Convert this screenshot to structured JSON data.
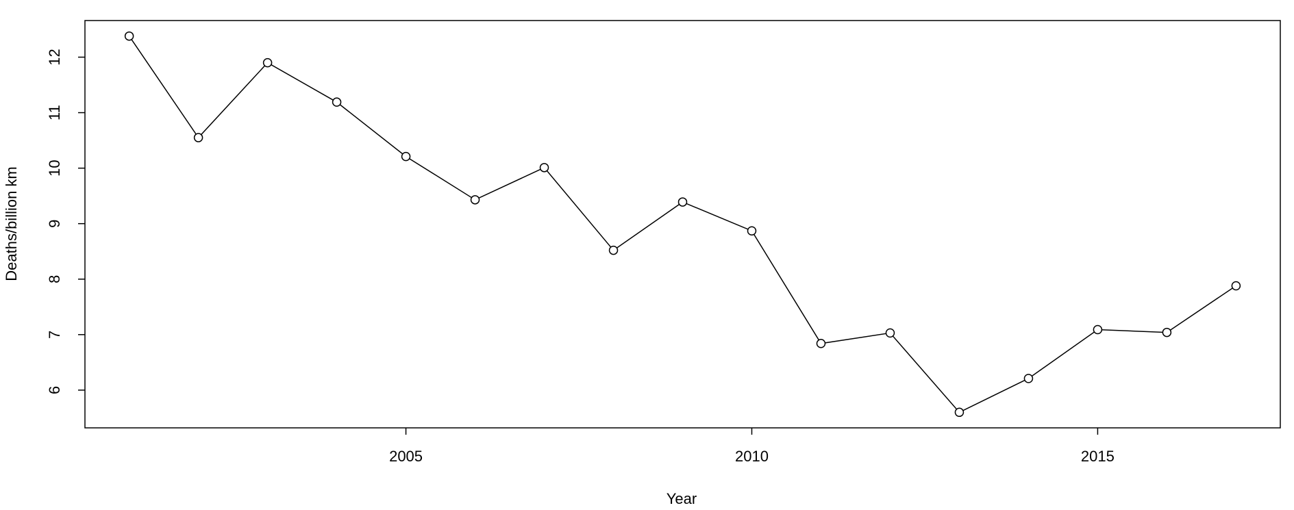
{
  "chart_data": {
    "type": "line",
    "x_label": "Year",
    "y_label": "Deaths/billion km",
    "series": [
      {
        "color": "#000000",
        "x": [
          2001,
          2002,
          2003,
          2004,
          2005,
          2006,
          2007,
          2008,
          2009,
          2010,
          2011,
          2012,
          2013,
          2014,
          2015,
          2016,
          2017
        ],
        "values": [
          12.38,
          10.55,
          11.9,
          11.19,
          10.21,
          9.43,
          10.01,
          8.52,
          9.39,
          8.87,
          6.84,
          7.03,
          5.6,
          6.21,
          7.09,
          7.04,
          7.88
        ]
      }
    ],
    "xlim": [
      2000.36,
      2017.64
    ],
    "xticks": [
      2005,
      2010,
      2015
    ],
    "ylim": [
      5.32,
      12.66
    ],
    "yticks": [
      6,
      7,
      8,
      9,
      10,
      11,
      12
    ],
    "grid": false
  }
}
